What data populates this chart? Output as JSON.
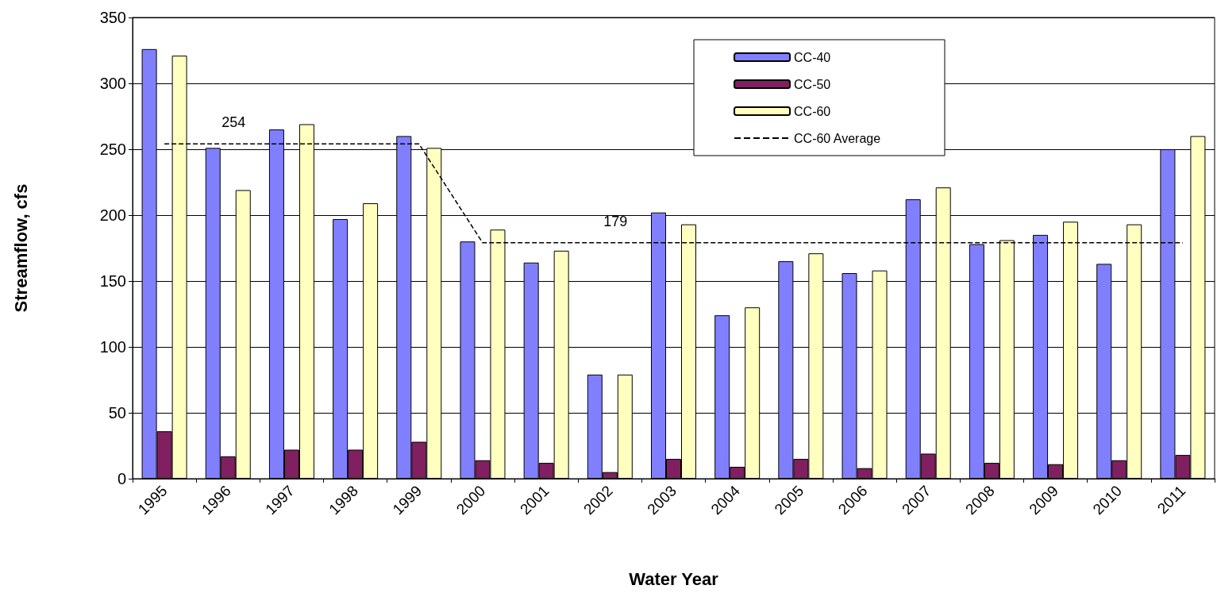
{
  "chart_data": {
    "type": "bar",
    "xlabel": "Water Year",
    "ylabel": "Streamflow, cfs",
    "categories": [
      "1995",
      "1996",
      "1997",
      "1998",
      "1999",
      "2000",
      "2001",
      "2002",
      "2003",
      "2004",
      "2005",
      "2006",
      "2007",
      "2008",
      "2009",
      "2010",
      "2011"
    ],
    "series": [
      {
        "name": "CC-40",
        "color": "#8080ff",
        "values": [
          326,
          251,
          265,
          197,
          260,
          180,
          164,
          79,
          202,
          124,
          165,
          156,
          212,
          178,
          185,
          163,
          250
        ]
      },
      {
        "name": "CC-50",
        "color": "#802060",
        "values": [
          36,
          17,
          22,
          22,
          28,
          14,
          12,
          5,
          15,
          9,
          15,
          8,
          19,
          12,
          11,
          14,
          18
        ]
      },
      {
        "name": "CC-60",
        "color": "#ffffc0",
        "values": [
          321,
          219,
          269,
          209,
          251,
          189,
          173,
          79,
          193,
          130,
          171,
          158,
          221,
          181,
          195,
          193,
          260
        ]
      },
      {
        "name": "CC-60 Average",
        "type": "line",
        "color": "#000000",
        "line_style": "dashed",
        "marker": "none",
        "values": [
          254,
          254,
          254,
          254,
          254,
          179,
          179,
          179,
          179,
          179,
          179,
          179,
          179,
          179,
          179,
          179,
          179
        ]
      }
    ],
    "annotations": [
      {
        "text": "254",
        "x": "1996",
        "y": 254
      },
      {
        "text": "179",
        "x": "2002",
        "y": 179
      }
    ],
    "ylim": [
      0,
      350
    ],
    "yticks": [
      0,
      50,
      100,
      150,
      200,
      250,
      300,
      350
    ],
    "grid": "y",
    "legend": "top right"
  }
}
